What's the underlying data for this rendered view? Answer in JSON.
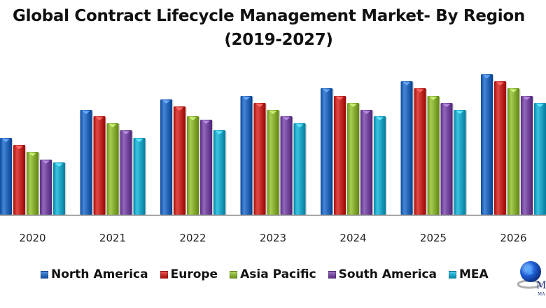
{
  "chart_data": {
    "type": "bar",
    "title": "Global Contract Lifecycle Management Market- By Region",
    "subtitle": "(2019-2027)",
    "xlabel": "",
    "ylabel": "",
    "value_units": "relative (no y-axis shown)",
    "ylim": [
      0,
      210
    ],
    "grid": false,
    "legend_position": "bottom",
    "categories": [
      "2020",
      "2021",
      "2022",
      "2023",
      "2024",
      "2025",
      "2026"
    ],
    "series": [
      {
        "name": "North America",
        "color": "#2E6DBE",
        "values": [
          110,
          150,
          165,
          170,
          181,
          191,
          201
        ]
      },
      {
        "name": "Europe",
        "color": "#C8302C",
        "values": [
          100,
          141,
          155,
          160,
          170,
          181,
          191
        ]
      },
      {
        "name": "Asia Pacific",
        "color": "#8DB33A",
        "values": [
          90,
          131,
          141,
          150,
          160,
          170,
          181
        ]
      },
      {
        "name": "South America",
        "color": "#7A4FA3",
        "values": [
          79,
          121,
          136,
          141,
          150,
          160,
          170
        ]
      },
      {
        "name": "MEA",
        "color": "#25A9C9",
        "values": [
          75,
          110,
          121,
          131,
          141,
          150,
          160
        ]
      }
    ]
  },
  "logo": {
    "name": "globe-logo",
    "text": "M",
    "subtext": "MA"
  }
}
